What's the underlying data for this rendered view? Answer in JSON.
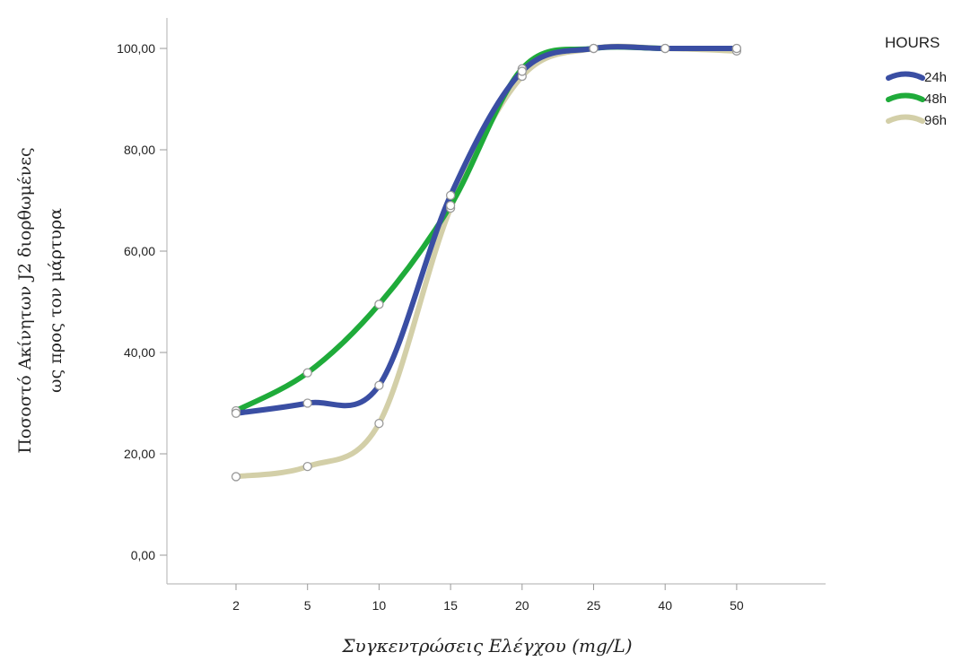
{
  "chart_data": {
    "type": "line",
    "categories": [
      "2",
      "5",
      "10",
      "15",
      "20",
      "25",
      "40",
      "50"
    ],
    "ytick_labels": [
      "0,00",
      "20,00",
      "40,00",
      "60,00",
      "80,00",
      "100,00"
    ],
    "ylim": [
      0,
      100
    ],
    "xlabel": "Συγκεντρώσεις Ελέγχου (mg/L)",
    "ylabel_lines": [
      "Ποσοστό Ακίνητων J2 διορθωμένες",
      "ως προς τον μάρτυρα"
    ],
    "legend_title": "HOURS",
    "legend_position": "top-right",
    "grid": false,
    "series": [
      {
        "name": "24h",
        "color": "#3a4ea3",
        "values": [
          28,
          30,
          33.5,
          71,
          95.5,
          100,
          100,
          100
        ]
      },
      {
        "name": "48h",
        "color": "#1fab3a",
        "values": [
          28.5,
          36,
          49.5,
          69,
          96,
          100,
          100,
          100
        ]
      },
      {
        "name": "96h",
        "color": "#d3cfa8",
        "values": [
          15.5,
          17.5,
          26,
          68.5,
          94.5,
          100,
          100,
          99.5
        ]
      }
    ]
  }
}
